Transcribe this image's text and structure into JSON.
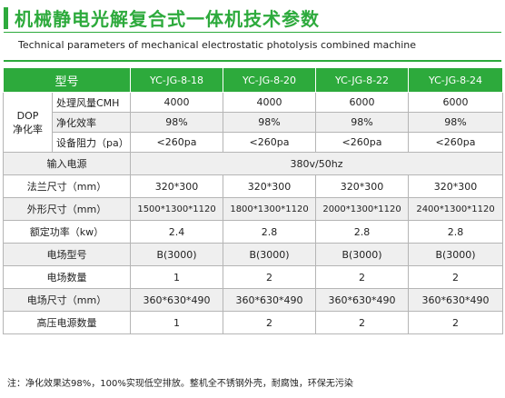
{
  "title_cn": "机械静电光解复合式一体机技术参数",
  "title_en": "Technical parameters of mechanical electrostatic photolysis combined machine",
  "header": {
    "label": "型号",
    "models": [
      "YC-JG-8-18",
      "YC-JG-8-20",
      "YC-JG-8-22",
      "YC-JG-8-24"
    ]
  },
  "dop_group": {
    "label": "DOP\n净化率",
    "rows": [
      {
        "label": "处理风量CMH",
        "values": [
          "4000",
          "4000",
          "6000",
          "6000"
        ]
      },
      {
        "label": "净化效率",
        "values": [
          "98%",
          "98%",
          "98%",
          "98%"
        ]
      },
      {
        "label": "设备阻力（pa）",
        "values": [
          "<260pa",
          "<260pa",
          "<260pa",
          "<260pa"
        ]
      }
    ]
  },
  "power_input": {
    "label": "输入电源",
    "value": "380v/50hz"
  },
  "rows": [
    {
      "label": "法兰尺寸（mm）",
      "values": [
        "320*300",
        "320*300",
        "320*300",
        "320*300"
      ]
    },
    {
      "label": "外形尺寸（mm）",
      "values": [
        "1500*1300*1120",
        "1800*1300*1120",
        "2000*1300*1120",
        "2400*1300*1120"
      ]
    },
    {
      "label": "额定功率（kw）",
      "values": [
        "2.4",
        "2.8",
        "2.8",
        "2.8"
      ]
    },
    {
      "label": "电场型号",
      "values": [
        "B(3000)",
        "B(3000)",
        "B(3000)",
        "B(3000)"
      ]
    },
    {
      "label": "电场数量",
      "values": [
        "1",
        "2",
        "2",
        "2"
      ]
    },
    {
      "label": "电场尺寸（mm）",
      "values": [
        "360*630*490",
        "360*630*490",
        "360*630*490",
        "360*630*490"
      ]
    },
    {
      "label": "高压电源数量",
      "values": [
        "1",
        "2",
        "2",
        "2"
      ]
    }
  ],
  "note": "注：净化效果达98%，100%实现低空排放。整机全不锈钢外壳，耐腐蚀，环保无污染"
}
